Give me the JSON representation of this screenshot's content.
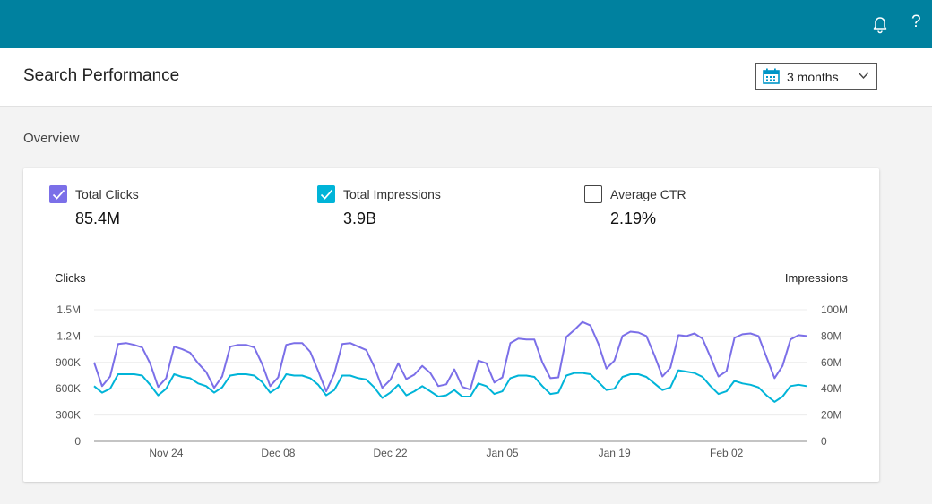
{
  "header": {
    "title": "Search Performance"
  },
  "date_range": {
    "selected": "3 months"
  },
  "overview": {
    "title": "Overview"
  },
  "metrics": [
    {
      "label": "Total Clicks",
      "value": "85.4M",
      "checked": true,
      "color": "#7b6fe8"
    },
    {
      "label": "Total Impressions",
      "value": "3.9B",
      "checked": true,
      "color": "#00b4d8"
    },
    {
      "label": "Average CTR",
      "value": "2.19%",
      "checked": false,
      "color": "#555555"
    }
  ],
  "chart_data": {
    "type": "line",
    "left_axis_title": "Clicks",
    "right_axis_title": "Impressions",
    "y_left_ticks": [
      "0",
      "300K",
      "600K",
      "900K",
      "1.2M",
      "1.5M"
    ],
    "y_left_range": [
      0,
      1500000
    ],
    "y_right_ticks": [
      "0",
      "20M",
      "40M",
      "60M",
      "80M",
      "100M"
    ],
    "y_right_range": [
      0,
      100000000
    ],
    "x_tick_labels": [
      "Nov 24",
      "Dec 08",
      "Dec 22",
      "Jan 05",
      "Jan 19",
      "Feb 02"
    ],
    "x_tick_day_index": [
      9,
      23,
      37,
      51,
      65,
      79
    ],
    "days": 90,
    "series": [
      {
        "name": "Clicks",
        "axis": "left",
        "color": "#7b6fe8",
        "values": [
          900000,
          630000,
          740000,
          1110000,
          1120000,
          1100000,
          1070000,
          890000,
          620000,
          720000,
          1080000,
          1050000,
          1010000,
          890000,
          790000,
          610000,
          740000,
          1080000,
          1100000,
          1100000,
          1070000,
          880000,
          630000,
          730000,
          1100000,
          1120000,
          1120000,
          1020000,
          800000,
          570000,
          770000,
          1110000,
          1120000,
          1080000,
          1040000,
          850000,
          610000,
          700000,
          890000,
          710000,
          760000,
          860000,
          780000,
          630000,
          650000,
          820000,
          620000,
          590000,
          920000,
          890000,
          670000,
          730000,
          1120000,
          1170000,
          1160000,
          1160000,
          900000,
          720000,
          730000,
          1190000,
          1270000,
          1360000,
          1320000,
          1110000,
          830000,
          920000,
          1200000,
          1250000,
          1240000,
          1200000,
          980000,
          740000,
          840000,
          1210000,
          1200000,
          1230000,
          1170000,
          960000,
          740000,
          800000,
          1180000,
          1220000,
          1230000,
          1200000,
          960000,
          720000,
          860000,
          1160000,
          1210000,
          1200000
        ]
      },
      {
        "name": "Impressions",
        "axis": "right",
        "color": "#00b4d8",
        "values": [
          42000000,
          37000000,
          40000000,
          51000000,
          51000000,
          51000000,
          50000000,
          43000000,
          35000000,
          40000000,
          51000000,
          49000000,
          48000000,
          44000000,
          42000000,
          37000000,
          41000000,
          50000000,
          51000000,
          51000000,
          50000000,
          45000000,
          37000000,
          41000000,
          51000000,
          50000000,
          50000000,
          48000000,
          43000000,
          35000000,
          39000000,
          50000000,
          50000000,
          48000000,
          47000000,
          41000000,
          33000000,
          37000000,
          43000000,
          35000000,
          38000000,
          42000000,
          38000000,
          34000000,
          35000000,
          39000000,
          34000000,
          34000000,
          44000000,
          42000000,
          36000000,
          38000000,
          48000000,
          50000000,
          50000000,
          49000000,
          42000000,
          36000000,
          37000000,
          50000000,
          52000000,
          52000000,
          51000000,
          45000000,
          39000000,
          40000000,
          49000000,
          51000000,
          51000000,
          49000000,
          44000000,
          39000000,
          41000000,
          54000000,
          53000000,
          52000000,
          49000000,
          42000000,
          36000000,
          38000000,
          46000000,
          44000000,
          43000000,
          41000000,
          35000000,
          30000000,
          34000000,
          42000000,
          43000000,
          42000000
        ]
      }
    ]
  }
}
